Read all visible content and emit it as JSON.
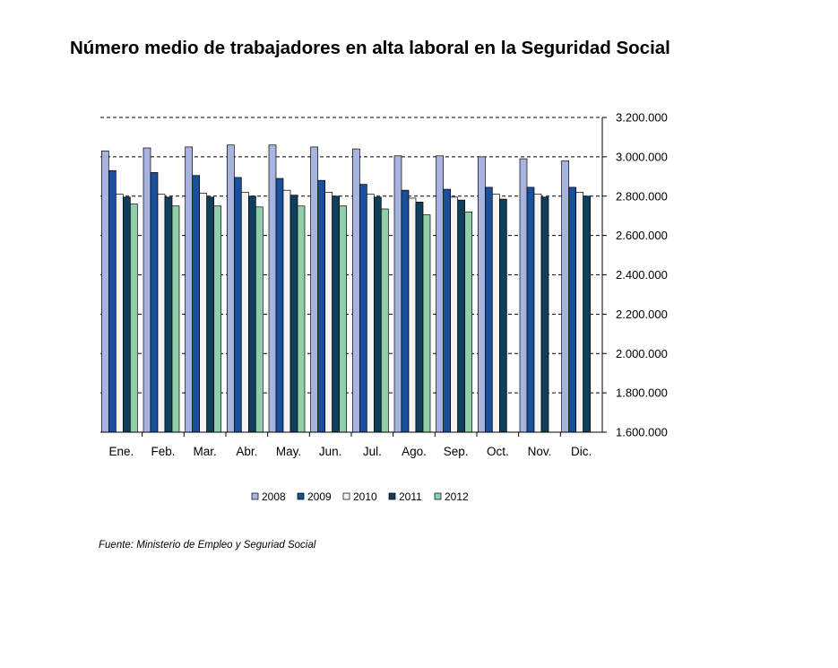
{
  "page": {
    "title": "Número medio de trabajadores en alta laboral en la Seguridad Social",
    "source": "Fuente: Ministerio de Empleo y Seguriad Social"
  },
  "chart_data": {
    "type": "bar",
    "title": "Número medio de trabajadores en alta laboral en la Seguridad Social",
    "xlabel": "",
    "ylabel": "",
    "categories": [
      "Ene.",
      "Feb.",
      "Mar.",
      "Abr.",
      "May.",
      "Jun.",
      "Jul.",
      "Ago.",
      "Sep.",
      "Oct.",
      "Nov.",
      "Dic."
    ],
    "ylim": [
      1600000,
      3200000
    ],
    "yticks": [
      1600000,
      1800000,
      2000000,
      2200000,
      2400000,
      2600000,
      2800000,
      3000000,
      3200000
    ],
    "ytick_labels": [
      "1.600.000",
      "1.800.000",
      "2.000.000",
      "2.200.000",
      "2.400.000",
      "2.600.000",
      "2.800.000",
      "3.000.000",
      "3.200.000"
    ],
    "y_axis_side": "right",
    "grid": "dashed horizontal",
    "legend_position": "bottom",
    "series": [
      {
        "name": "2008",
        "color": "#a8b4e0",
        "values": [
          3030000,
          3045000,
          3050000,
          3060000,
          3060000,
          3050000,
          3040000,
          3005000,
          3005000,
          3000000,
          2990000,
          2980000
        ]
      },
      {
        "name": "2009",
        "color": "#1a4f9c",
        "values": [
          2930000,
          2920000,
          2905000,
          2895000,
          2890000,
          2880000,
          2860000,
          2830000,
          2835000,
          2845000,
          2845000,
          2845000
        ]
      },
      {
        "name": "2010",
        "color": "#f4f4f4",
        "values": [
          2810000,
          2810000,
          2815000,
          2820000,
          2830000,
          2820000,
          2810000,
          2790000,
          2795000,
          2810000,
          2810000,
          2820000
        ]
      },
      {
        "name": "2011",
        "color": "#0f3f5a",
        "values": [
          2795000,
          2795000,
          2795000,
          2800000,
          2805000,
          2800000,
          2795000,
          2770000,
          2780000,
          2785000,
          2795000,
          2800000
        ]
      },
      {
        "name": "2012",
        "color": "#8fcfaa",
        "values": [
          2760000,
          2750000,
          2750000,
          2745000,
          2750000,
          2750000,
          2735000,
          2705000,
          2720000,
          null,
          null,
          null
        ]
      }
    ]
  }
}
